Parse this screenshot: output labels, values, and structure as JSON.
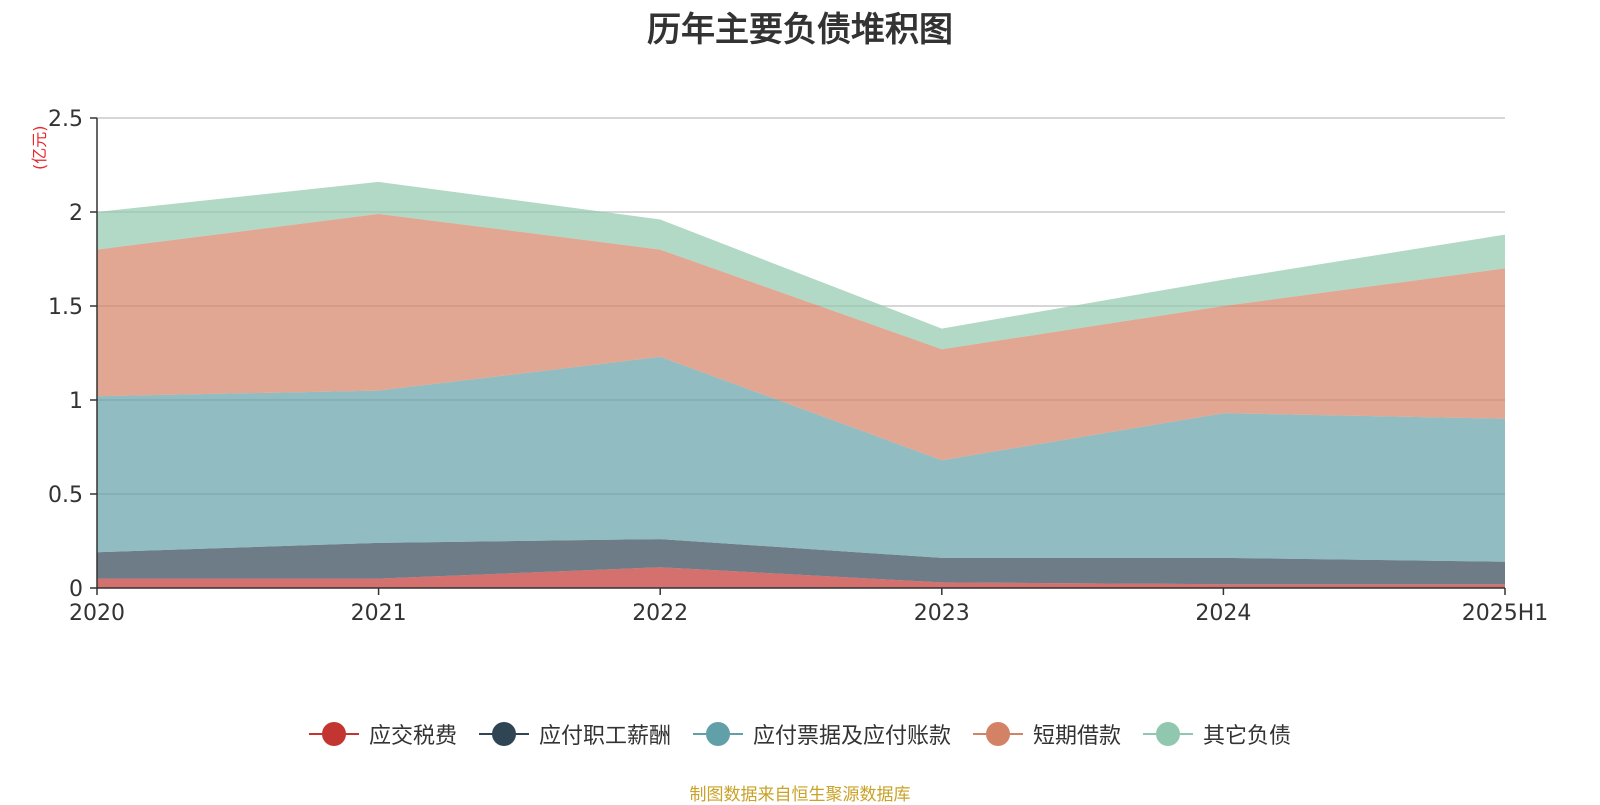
{
  "chart_data": {
    "type": "area",
    "title": "历年主要负债堆积图",
    "unit": "(亿元)",
    "categories": [
      "2020",
      "2021",
      "2022",
      "2023",
      "2024",
      "2025H1"
    ],
    "ylim": [
      0,
      2.5
    ],
    "yticks": [
      "0",
      "0.5",
      "1",
      "1.5",
      "2",
      "2.5"
    ],
    "stacked": true,
    "grid": true,
    "legend_position": "bottom",
    "series": [
      {
        "name": "应交税费",
        "values": [
          0.05,
          0.05,
          0.11,
          0.03,
          0.02,
          0.02
        ],
        "color": "#c23531"
      },
      {
        "name": "应付职工薪酬",
        "values": [
          0.14,
          0.19,
          0.15,
          0.13,
          0.14,
          0.12
        ],
        "color": "#2f4554"
      },
      {
        "name": "应付票据及应付账款",
        "values": [
          0.83,
          0.81,
          0.97,
          0.52,
          0.77,
          0.76
        ],
        "color": "#61a0a8"
      },
      {
        "name": "短期借款",
        "values": [
          0.78,
          0.94,
          0.57,
          0.59,
          0.57,
          0.8
        ],
        "color": "#d48265"
      },
      {
        "name": "其它负债",
        "values": [
          0.2,
          0.17,
          0.16,
          0.11,
          0.14,
          0.18
        ],
        "color": "#91c7ae"
      }
    ]
  },
  "source_note": "制图数据来自恒生聚源数据库"
}
